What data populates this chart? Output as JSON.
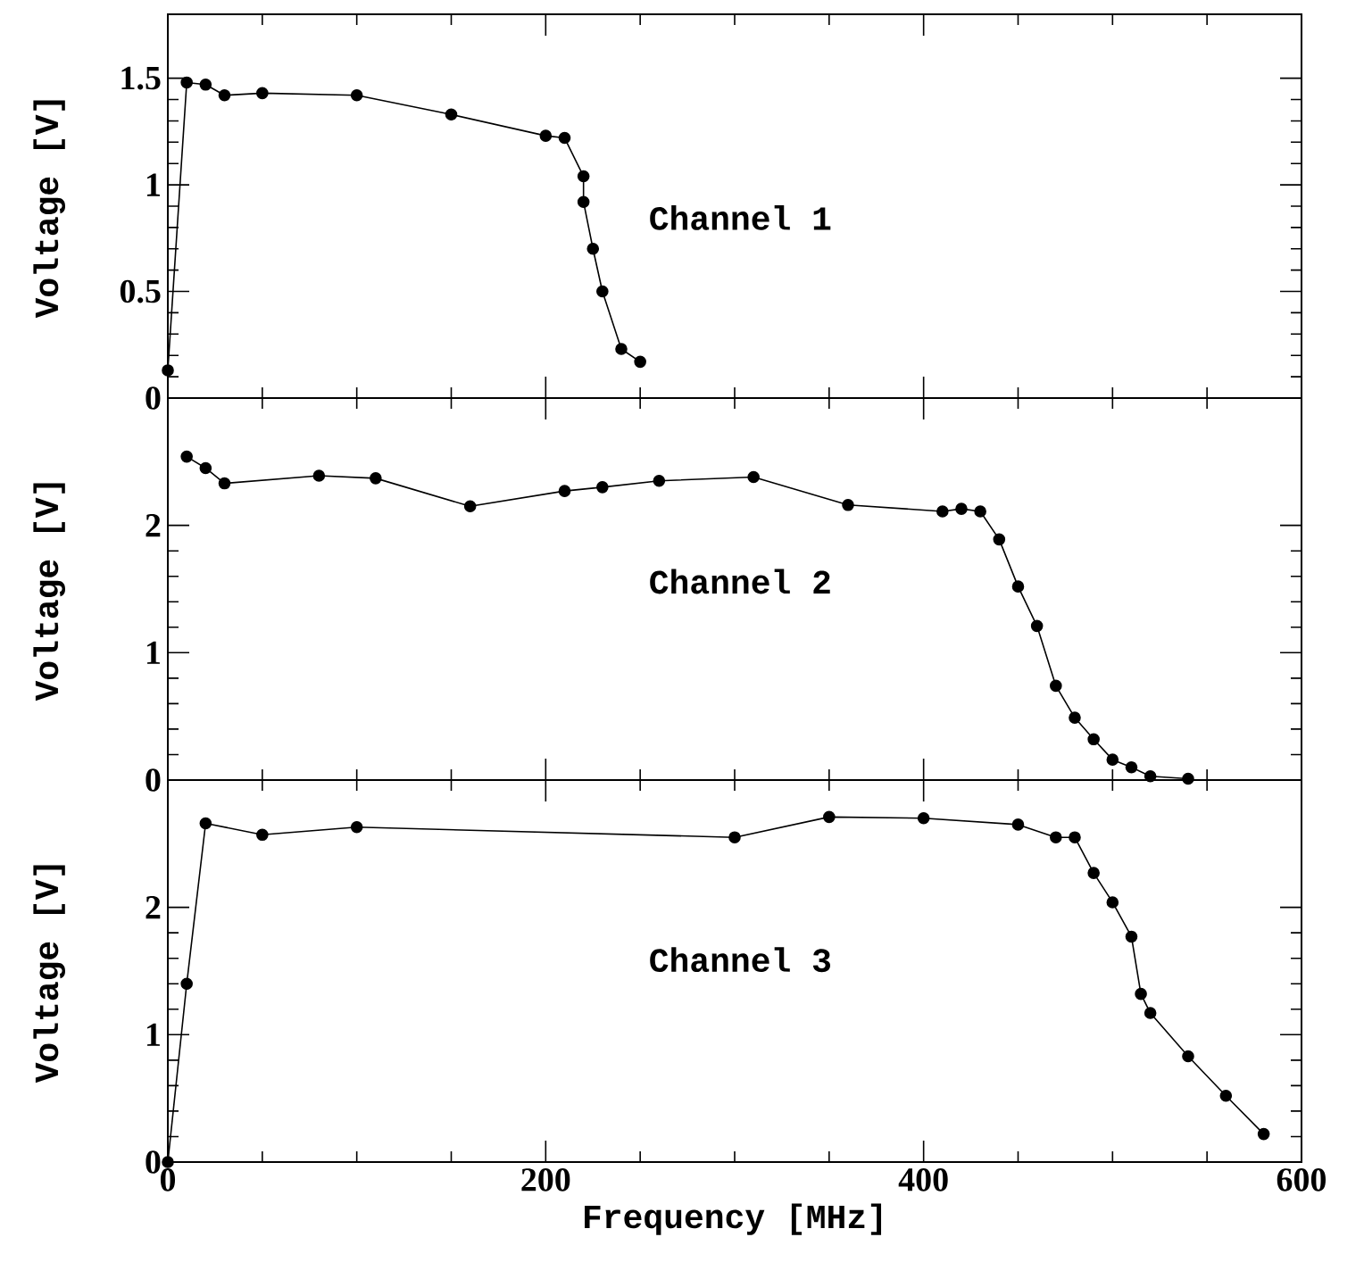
{
  "chart_data": [
    {
      "type": "line",
      "ylabel": "Voltage [V]",
      "annotations": [
        "Channel 1"
      ],
      "xlim": [
        0,
        600
      ],
      "xticks": [
        0,
        200,
        400,
        600
      ],
      "ylim": [
        0,
        1.8
      ],
      "yticks": [
        0,
        0.5,
        1,
        1.5
      ],
      "tick_labels": "y",
      "marker": "circle",
      "line_style": "solid",
      "x": [
        0,
        10,
        20,
        30,
        50,
        100,
        150,
        200,
        210,
        220,
        220,
        225,
        230,
        240,
        250
      ],
      "series": [
        {
          "color": "#000000",
          "values": [
            0.13,
            1.48,
            1.47,
            1.42,
            1.43,
            1.42,
            1.33,
            1.23,
            1.22,
            1.04,
            0.92,
            0.7,
            0.5,
            0.23,
            0.17
          ]
        }
      ]
    },
    {
      "type": "line",
      "ylabel": "Voltage [V]",
      "annotations": [
        "Channel 2"
      ],
      "xlim": [
        0,
        600
      ],
      "xticks": [
        0,
        200,
        400,
        600
      ],
      "ylim": [
        0,
        3
      ],
      "yticks": [
        0,
        1,
        2
      ],
      "tick_labels": "y",
      "marker": "circle",
      "line_style": "solid",
      "x": [
        10,
        20,
        30,
        80,
        110,
        160,
        210,
        230,
        260,
        310,
        360,
        410,
        420,
        430,
        440,
        450,
        460,
        470,
        480,
        490,
        500,
        510,
        520,
        540
      ],
      "series": [
        {
          "color": "#000000",
          "values": [
            2.54,
            2.45,
            2.33,
            2.39,
            2.37,
            2.15,
            2.27,
            2.3,
            2.35,
            2.38,
            2.16,
            2.11,
            2.13,
            2.11,
            1.89,
            1.52,
            1.21,
            0.74,
            0.49,
            0.32,
            0.16,
            0.1,
            0.03,
            0.01
          ]
        }
      ]
    },
    {
      "type": "line",
      "xlabel": "Frequency [MHz]",
      "ylabel": "Voltage [V]",
      "annotations": [
        "Channel 3"
      ],
      "xlim": [
        0,
        600
      ],
      "xticks": [
        0,
        200,
        400,
        600
      ],
      "ylim": [
        0,
        3
      ],
      "yticks": [
        0,
        1,
        2
      ],
      "marker": "circle",
      "line_style": "solid",
      "x": [
        0,
        10,
        20,
        50,
        100,
        300,
        350,
        400,
        450,
        470,
        480,
        490,
        500,
        510,
        515,
        520,
        540,
        560,
        580
      ],
      "series": [
        {
          "color": "#000000",
          "values": [
            0,
            1.4,
            2.66,
            2.57,
            2.63,
            2.55,
            2.71,
            2.7,
            2.65,
            2.55,
            2.55,
            2.27,
            2.04,
            1.77,
            1.32,
            1.17,
            0.83,
            0.52,
            0.22
          ]
        }
      ]
    }
  ]
}
